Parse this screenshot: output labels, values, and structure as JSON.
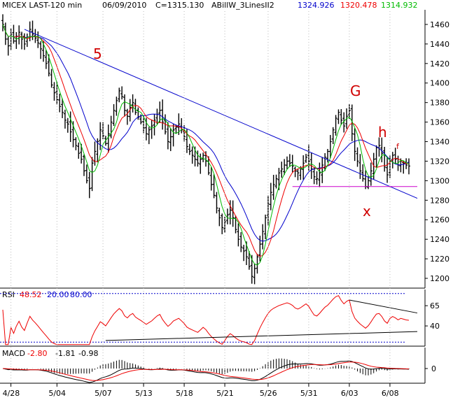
{
  "header": {
    "symbol": "MICEX LAST-120 min",
    "date": "06/09/2010",
    "close": "C=1315.130",
    "indicator": "ABillW_3LinesII2",
    "ind_blue": "1324.926",
    "ind_red": "1320.478",
    "ind_green": "1314.932"
  },
  "rsi_header": {
    "label": "RSI",
    "value": "48.52",
    "low": "20.00",
    "high": "80.00"
  },
  "macd_header": {
    "label": "MACD",
    "value": "-2.80",
    "signal": "-1.81",
    "hist": "-0.98"
  },
  "annotations": {
    "five": "5",
    "g": "G",
    "h": "h",
    "f": "f",
    "x": "x"
  },
  "colors": {
    "blue": "#0000cc",
    "red": "#ee0000",
    "green": "#00bb00",
    "magenta": "#cc00cc",
    "rsi_line": "#ee0000",
    "macd_signal": "#ee0000"
  },
  "chart_data": [
    {
      "type": "candlestick",
      "panel": "price",
      "ylim": [
        1190,
        1475
      ],
      "yticks": [
        1200,
        1220,
        1240,
        1260,
        1280,
        1300,
        1320,
        1340,
        1360,
        1380,
        1400,
        1420,
        1440,
        1460
      ],
      "xtick_labels": [
        {
          "bar": 3,
          "label": "4/28"
        },
        {
          "bar": 20,
          "label": "5/04"
        },
        {
          "bar": 37,
          "label": "5/07"
        },
        {
          "bar": 52,
          "label": "5/13"
        },
        {
          "bar": 67,
          "label": "5/18"
        },
        {
          "bar": 82,
          "label": "5/21"
        },
        {
          "bar": 98,
          "label": "5/26"
        },
        {
          "bar": 113,
          "label": "5/31"
        },
        {
          "bar": 128,
          "label": "6/03"
        },
        {
          "bar": 143,
          "label": "6/08"
        }
      ],
      "closes": [
        1460,
        1445,
        1438,
        1450,
        1443,
        1448,
        1452,
        1445,
        1440,
        1447,
        1455,
        1450,
        1446,
        1441,
        1435,
        1428,
        1420,
        1410,
        1398,
        1390,
        1383,
        1376,
        1370,
        1362,
        1358,
        1350,
        1342,
        1336,
        1328,
        1322,
        1310,
        1300,
        1292,
        1318,
        1330,
        1340,
        1352,
        1346,
        1338,
        1348,
        1360,
        1372,
        1382,
        1392,
        1386,
        1372,
        1366,
        1375,
        1380,
        1370,
        1365,
        1360,
        1354,
        1348,
        1352,
        1356,
        1362,
        1368,
        1372,
        1360,
        1350,
        1340,
        1345,
        1352,
        1355,
        1358,
        1352,
        1345,
        1335,
        1330,
        1326,
        1322,
        1318,
        1322,
        1326,
        1320,
        1308,
        1296,
        1285,
        1272,
        1262,
        1252,
        1258,
        1265,
        1270,
        1262,
        1250,
        1240,
        1232,
        1228,
        1222,
        1212,
        1202,
        1210,
        1222,
        1235,
        1248,
        1262,
        1276,
        1288,
        1296,
        1302,
        1308,
        1312,
        1316,
        1320,
        1318,
        1315,
        1310,
        1308,
        1312,
        1318,
        1324,
        1320,
        1312,
        1304,
        1302,
        1308,
        1316,
        1324,
        1330,
        1340,
        1352,
        1364,
        1370,
        1362,
        1356,
        1366,
        1372,
        1348,
        1330,
        1320,
        1310,
        1302,
        1294,
        1300,
        1310,
        1322,
        1334,
        1336,
        1328,
        1314,
        1306,
        1320,
        1326,
        1322,
        1316,
        1320,
        1318,
        1316,
        1315
      ],
      "bar_spacing_days": "120 min",
      "overlays": [
        {
          "name": "blue",
          "color": "#0000cc",
          "last": 1324.926
        },
        {
          "name": "red",
          "color": "#ee0000",
          "last": 1320.478
        },
        {
          "name": "green",
          "color": "#00bb00",
          "last": 1314.932
        }
      ],
      "trendlines": [
        {
          "color": "#0000cc",
          "from": {
            "bar": 8,
            "price": 1455
          },
          "to": {
            "bar": 150,
            "price": 1282
          }
        },
        {
          "color": "#cc00cc",
          "from": {
            "bar": 107,
            "price": 1294
          },
          "to": {
            "bar": 150,
            "price": 1294
          }
        }
      ],
      "annotations": [
        "5",
        "G",
        "h",
        "f",
        "x"
      ]
    },
    {
      "type": "line",
      "panel": "rsi",
      "title": "RSI",
      "ylim": [
        15,
        85
      ],
      "yticks": [
        40,
        65
      ],
      "levels": [
        20,
        80
      ],
      "last": 48.52
    },
    {
      "type": "line",
      "panel": "macd",
      "title": "MACD",
      "yticks": [
        0
      ],
      "values": [
        -2.8,
        -1.81,
        -0.98
      ]
    }
  ]
}
